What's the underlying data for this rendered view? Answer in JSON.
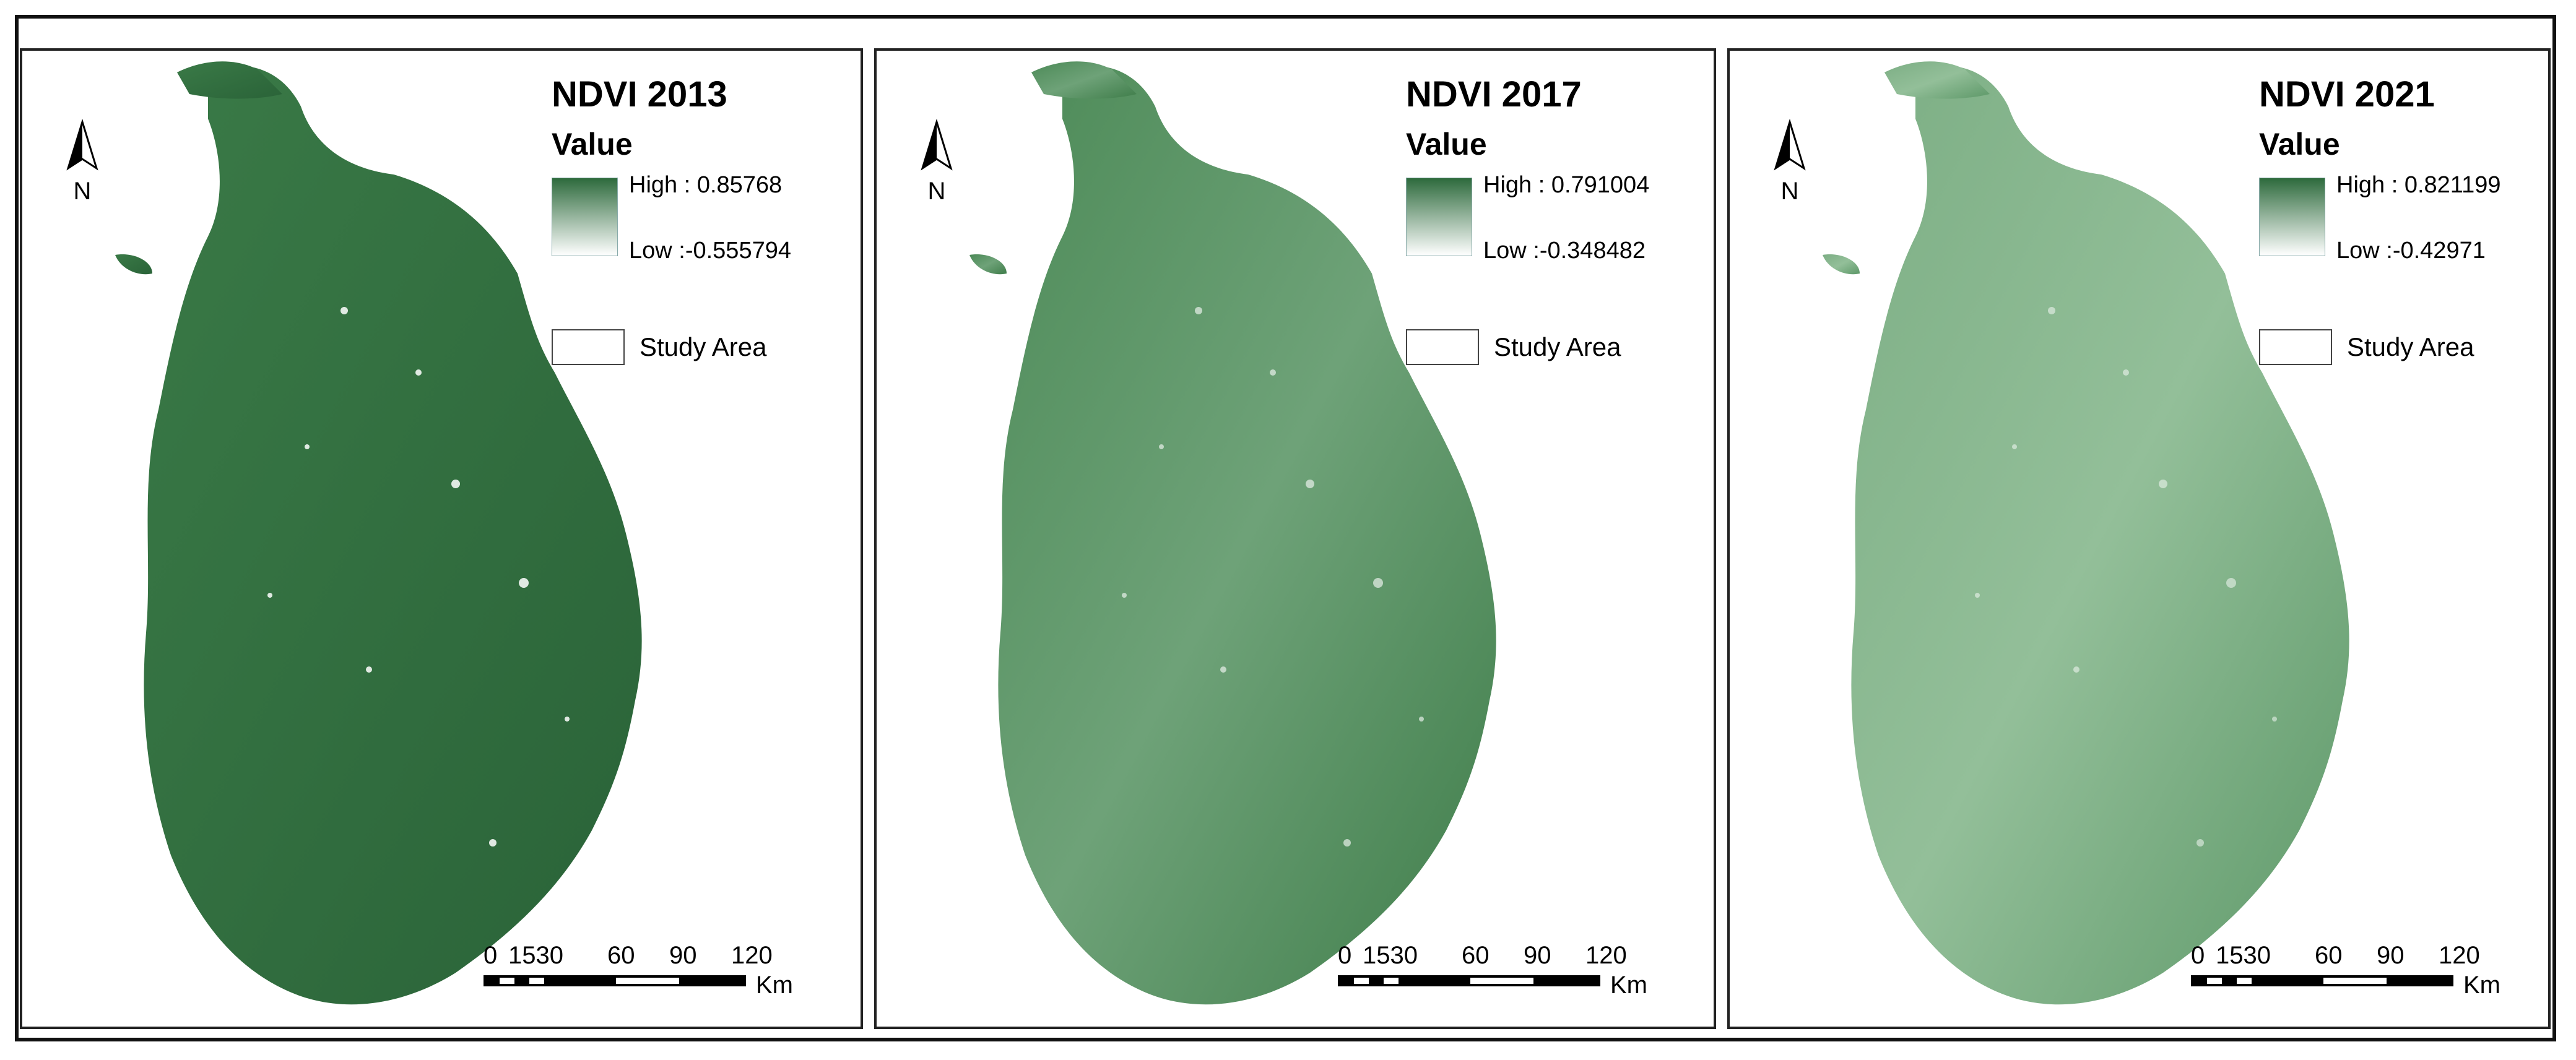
{
  "panels": [
    {
      "title": "NDVI 2013",
      "legend": {
        "heading": "Value",
        "high": "High : 0.85768",
        "low": "Low :-0.555794",
        "study_area": "Study Area"
      },
      "north": "N",
      "scale": {
        "labels": [
          "0",
          "1530",
          "60",
          "90",
          "120"
        ],
        "unit": "Km"
      },
      "colors": {
        "ramp_high": "#2d6a3c",
        "ramp_low": "#ffffff",
        "fill_main": "#33733f",
        "fill_light": "#4a8c55"
      }
    },
    {
      "title": "NDVI 2017",
      "legend": {
        "heading": "Value",
        "high": "High : 0.791004",
        "low": "Low :-0.348482",
        "study_area": "Study Area"
      },
      "north": "N",
      "scale": {
        "labels": [
          "0",
          "1530",
          "60",
          "90",
          "120"
        ],
        "unit": "Km"
      },
      "colors": {
        "ramp_high": "#2d6a3c",
        "ramp_low": "#ffffff",
        "fill_main": "#4f8c5a",
        "fill_light": "#7fb087"
      }
    },
    {
      "title": "NDVI 2021",
      "legend": {
        "heading": "Value",
        "high": "High : 0.821199",
        "low": "Low :-0.42971",
        "study_area": "Study Area"
      },
      "north": "N",
      "scale": {
        "labels": [
          "0",
          "1530",
          "60",
          "90",
          "120"
        ],
        "unit": "Km"
      },
      "colors": {
        "ramp_high": "#2d6a3c",
        "ramp_low": "#ffffff",
        "fill_main": "#5d9868",
        "fill_light": "#9dc6a3"
      }
    }
  ]
}
